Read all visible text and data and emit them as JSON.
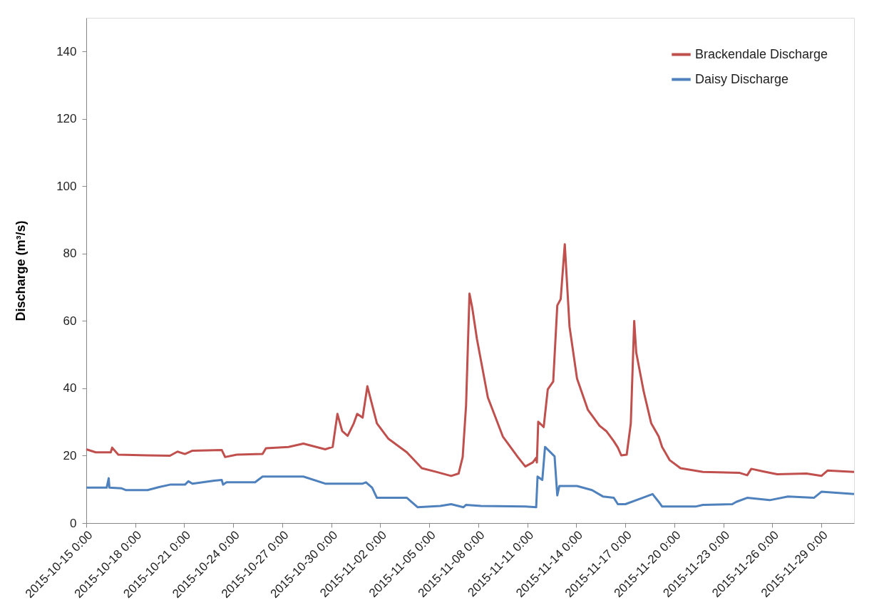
{
  "chart_data": {
    "type": "line",
    "ylabel": "Discharge (m³/s)",
    "ylim": [
      0,
      150
    ],
    "yticks": [
      0,
      20,
      40,
      60,
      80,
      100,
      120,
      140
    ],
    "xlim": [
      "2015-10-15T00:00",
      "2015-12-01T00:00"
    ],
    "xticks": [
      {
        "value": "2015-10-15T00:00",
        "label": "2015-10-15  0:00"
      },
      {
        "value": "2015-10-18T00:00",
        "label": "2015-10-18  0:00"
      },
      {
        "value": "2015-10-21T00:00",
        "label": "2015-10-21  0:00"
      },
      {
        "value": "2015-10-24T00:00",
        "label": "2015-10-24  0:00"
      },
      {
        "value": "2015-10-27T00:00",
        "label": "2015-10-27  0:00"
      },
      {
        "value": "2015-10-30T00:00",
        "label": "2015-10-30  0:00"
      },
      {
        "value": "2015-11-02T00:00",
        "label": "2015-11-02  0:00"
      },
      {
        "value": "2015-11-05T00:00",
        "label": "2015-11-05  0:00"
      },
      {
        "value": "2015-11-08T00:00",
        "label": "2015-11-08  0:00"
      },
      {
        "value": "2015-11-11T00:00",
        "label": "2015-11-11  0:00"
      },
      {
        "value": "2015-11-14T00:00",
        "label": "2015-11-14  0:00"
      },
      {
        "value": "2015-11-17T00:00",
        "label": "2015-11-17  0:00"
      },
      {
        "value": "2015-11-20T00:00",
        "label": "2015-11-20  0:00"
      },
      {
        "value": "2015-11-23T00:00",
        "label": "2015-11-23  0:00"
      },
      {
        "value": "2015-11-26T00:00",
        "label": "2015-11-26  0:00"
      },
      {
        "value": "2015-11-29T00:00",
        "label": "2015-11-29  0:00"
      }
    ],
    "grid": false,
    "legend": "top right",
    "marker": "none",
    "line_style": "solid",
    "series": [
      {
        "name": "Brackendale Discharge",
        "color": "#c0504d",
        "x": [
          "2015-10-15T00:00",
          "2015-10-15T14:00",
          "2015-10-16T12:00",
          "2015-10-16T14:00",
          "2015-10-16T23:00",
          "2015-10-18T18:00",
          "2015-10-20T03:00",
          "2015-10-20T14:00",
          "2015-10-21T01:00",
          "2015-10-21T12:00",
          "2015-10-23T07:00",
          "2015-10-23T12:00",
          "2015-10-24T05:00",
          "2015-10-25T19:00",
          "2015-10-26T00:00",
          "2015-10-27T09:00",
          "2015-10-28T07:00",
          "2015-10-29T15:00",
          "2015-10-30T02:00",
          "2015-10-30T09:00",
          "2015-10-30T16:00",
          "2015-10-31T00:00",
          "2015-10-31T09:00",
          "2015-10-31T14:00",
          "2015-10-31T22:00",
          "2015-11-01T05:00",
          "2015-11-01T19:00",
          "2015-11-02T12:00",
          "2015-11-03T15:00",
          "2015-11-04T13:00",
          "2015-11-05T10:00",
          "2015-11-06T08:00",
          "2015-11-06T19:00",
          "2015-11-07T01:00",
          "2015-11-07T06:00",
          "2015-11-07T11:00",
          "2015-11-07T15:00",
          "2015-11-07T22:00",
          "2015-11-08T14:00",
          "2015-11-09T12:00",
          "2015-11-10T10:00",
          "2015-11-10T21:00",
          "2015-11-11T08:00",
          "2015-11-11T13:00",
          "2015-11-11T14:00",
          "2015-11-11T16:00",
          "2015-11-12T00:00",
          "2015-11-12T06:00",
          "2015-11-12T14:00",
          "2015-11-12T20:00",
          "2015-11-13T01:00",
          "2015-11-13T07:00",
          "2015-11-13T14:00",
          "2015-11-14T01:00",
          "2015-11-14T17:00",
          "2015-11-15T10:00",
          "2015-11-15T20:00",
          "2015-11-16T07:00",
          "2015-11-16T13:00",
          "2015-11-16T18:00",
          "2015-11-17T02:00",
          "2015-11-17T08:00",
          "2015-11-17T13:00",
          "2015-11-17T16:00",
          "2015-11-18T03:00",
          "2015-11-18T14:00",
          "2015-11-19T01:00",
          "2015-11-19T06:00",
          "2015-11-19T17:00",
          "2015-11-20T09:00",
          "2015-11-21T18:00",
          "2015-11-24T00:00",
          "2015-11-24T11:00",
          "2015-11-24T17:00",
          "2015-11-25T09:00",
          "2015-11-26T07:00",
          "2015-11-28T02:00",
          "2015-11-29T00:00",
          "2015-11-29T09:00",
          "2015-12-01T00:00"
        ],
        "values": [
          21.9,
          21.0,
          21.0,
          22.4,
          20.3,
          20.1,
          20.0,
          21.2,
          20.5,
          21.5,
          21.7,
          19.6,
          20.3,
          20.5,
          22.2,
          22.6,
          23.6,
          21.9,
          22.6,
          32.4,
          27.3,
          25.9,
          29.6,
          32.4,
          31.3,
          40.6,
          29.6,
          25.0,
          21.0,
          16.3,
          15.2,
          14.0,
          14.7,
          19.6,
          35.0,
          68.1,
          64.0,
          54.6,
          37.3,
          25.7,
          19.6,
          16.8,
          18.0,
          19.4,
          18.0,
          30.1,
          28.5,
          39.7,
          42.0,
          64.6,
          66.5,
          82.8,
          58.3,
          42.9,
          33.6,
          28.9,
          27.3,
          24.3,
          22.4,
          20.1,
          20.3,
          29.6,
          60.0,
          50.6,
          39.0,
          29.6,
          25.7,
          22.6,
          18.7,
          16.3,
          15.2,
          14.9,
          14.2,
          16.1,
          15.4,
          14.5,
          14.7,
          14.0,
          15.6,
          15.2
        ]
      },
      {
        "name": "Daisy Discharge",
        "color": "#4f81bd",
        "x": [
          "2015-10-15T00:00",
          "2015-10-16T06:00",
          "2015-10-16T09:00",
          "2015-10-16T10:00",
          "2015-10-17T04:00",
          "2015-10-17T10:00",
          "2015-10-18T18:00",
          "2015-10-19T11:00",
          "2015-10-20T03:00",
          "2015-10-21T01:00",
          "2015-10-21T06:00",
          "2015-10-21T12:00",
          "2015-10-22T20:00",
          "2015-10-23T07:00",
          "2015-10-23T09:00",
          "2015-10-23T14:00",
          "2015-10-25T08:00",
          "2015-10-25T19:00",
          "2015-10-28T07:00",
          "2015-10-29T15:00",
          "2015-10-31T22:00",
          "2015-11-01T03:00",
          "2015-11-01T12:00",
          "2015-11-01T19:00",
          "2015-11-03T15:00",
          "2015-11-04T07:00",
          "2015-11-05T16:00",
          "2015-11-06T08:00",
          "2015-11-07T02:00",
          "2015-11-07T06:00",
          "2015-11-08T04:00",
          "2015-11-10T21:00",
          "2015-11-11T13:00",
          "2015-11-11T15:00",
          "2015-11-11T22:00",
          "2015-11-12T02:00",
          "2015-11-12T16:00",
          "2015-11-12T20:00",
          "2015-11-12T23:00",
          "2015-11-14T01:00",
          "2015-11-14T23:00",
          "2015-11-15T15:00",
          "2015-11-16T07:00",
          "2015-11-16T13:00",
          "2015-11-17T00:00",
          "2015-11-17T16:00",
          "2015-11-18T16:00",
          "2015-11-19T01:00",
          "2015-11-19T06:00",
          "2015-11-21T07:00",
          "2015-11-21T18:00",
          "2015-11-23T13:00",
          "2015-11-23T19:00",
          "2015-11-24T11:00",
          "2015-11-25T20:00",
          "2015-11-26T23:00",
          "2015-11-28T13:00",
          "2015-11-29T00:00",
          "2015-12-01T00:00"
        ],
        "values": [
          10.5,
          10.5,
          13.3,
          10.5,
          10.3,
          9.8,
          9.8,
          10.7,
          11.4,
          11.4,
          12.4,
          11.7,
          12.6,
          12.8,
          11.4,
          12.1,
          12.1,
          13.8,
          13.8,
          11.7,
          11.7,
          12.1,
          10.5,
          7.5,
          7.5,
          4.7,
          5.1,
          5.6,
          4.7,
          5.4,
          5.1,
          4.9,
          4.7,
          13.8,
          12.8,
          22.6,
          19.8,
          8.2,
          11.0,
          11.0,
          9.8,
          7.9,
          7.5,
          5.6,
          5.6,
          6.8,
          8.6,
          6.3,
          4.9,
          4.9,
          5.4,
          5.6,
          6.3,
          7.5,
          6.8,
          7.9,
          7.5,
          9.3,
          8.6
        ]
      }
    ]
  }
}
